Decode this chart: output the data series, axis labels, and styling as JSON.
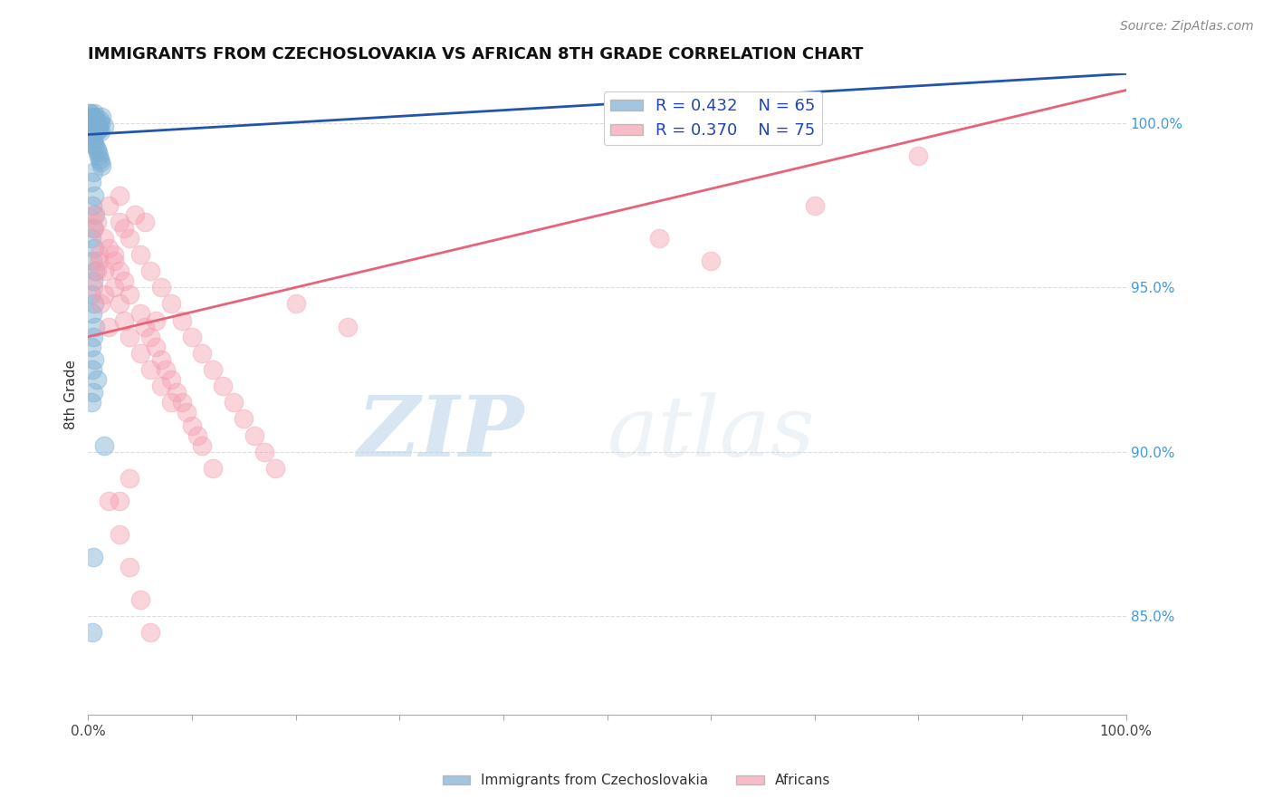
{
  "title": "IMMIGRANTS FROM CZECHOSLOVAKIA VS AFRICAN 8TH GRADE CORRELATION CHART",
  "source": "Source: ZipAtlas.com",
  "ylabel": "8th Grade",
  "ylabel_right_ticks": [
    85.0,
    90.0,
    95.0,
    100.0
  ],
  "xlim": [
    0.0,
    100.0
  ],
  "ylim": [
    82.0,
    101.5
  ],
  "legend1_label": "Immigrants from Czechoslovakia",
  "legend2_label": "Africans",
  "R1": 0.432,
  "N1": 65,
  "R2": 0.37,
  "N2": 75,
  "blue_color": "#7BAFD4",
  "pink_color": "#F4A0B0",
  "blue_line_color": "#2255AA",
  "pink_line_color": "#E8637A",
  "blue_line": [
    [
      0.0,
      99.65
    ],
    [
      100.0,
      101.5
    ]
  ],
  "pink_line": [
    [
      0.0,
      93.5
    ],
    [
      100.0,
      101.0
    ]
  ],
  "blue_dots": [
    [
      0.15,
      100.3
    ],
    [
      0.3,
      100.2
    ],
    [
      0.5,
      100.1
    ],
    [
      0.8,
      100.0
    ],
    [
      1.0,
      99.9
    ],
    [
      0.6,
      100.3
    ],
    [
      1.2,
      100.0
    ],
    [
      0.4,
      100.1
    ],
    [
      0.7,
      100.2
    ],
    [
      0.9,
      99.8
    ],
    [
      1.5,
      99.9
    ],
    [
      0.2,
      100.3
    ],
    [
      1.1,
      100.1
    ],
    [
      0.6,
      100.0
    ],
    [
      0.8,
      99.9
    ],
    [
      1.3,
      100.2
    ],
    [
      0.4,
      100.1
    ],
    [
      0.5,
      99.8
    ],
    [
      0.25,
      100.15
    ],
    [
      0.35,
      100.0
    ],
    [
      0.45,
      100.05
    ],
    [
      0.55,
      100.1
    ],
    [
      0.65,
      100.0
    ],
    [
      0.75,
      99.95
    ],
    [
      0.85,
      99.9
    ],
    [
      0.95,
      99.85
    ],
    [
      1.05,
      99.8
    ],
    [
      1.15,
      99.75
    ],
    [
      0.2,
      99.9
    ],
    [
      0.3,
      99.7
    ],
    [
      0.4,
      99.6
    ],
    [
      0.5,
      99.5
    ],
    [
      0.6,
      99.4
    ],
    [
      0.7,
      99.3
    ],
    [
      0.8,
      99.2
    ],
    [
      0.9,
      99.1
    ],
    [
      1.0,
      99.0
    ],
    [
      1.1,
      98.9
    ],
    [
      1.2,
      98.8
    ],
    [
      1.3,
      98.7
    ],
    [
      0.5,
      98.5
    ],
    [
      0.3,
      98.2
    ],
    [
      0.6,
      97.8
    ],
    [
      0.4,
      97.5
    ],
    [
      0.7,
      97.2
    ],
    [
      0.5,
      96.8
    ],
    [
      0.3,
      96.5
    ],
    [
      0.6,
      96.2
    ],
    [
      0.4,
      95.8
    ],
    [
      0.7,
      95.5
    ],
    [
      0.5,
      95.2
    ],
    [
      0.3,
      94.8
    ],
    [
      0.6,
      94.5
    ],
    [
      0.4,
      94.2
    ],
    [
      0.7,
      93.8
    ],
    [
      0.5,
      93.5
    ],
    [
      0.3,
      93.2
    ],
    [
      0.6,
      92.8
    ],
    [
      0.4,
      92.5
    ],
    [
      0.8,
      92.2
    ],
    [
      0.5,
      91.8
    ],
    [
      0.3,
      91.5
    ],
    [
      1.5,
      90.2
    ],
    [
      0.5,
      86.8
    ],
    [
      0.4,
      84.5
    ]
  ],
  "pink_dots": [
    [
      0.5,
      97.2
    ],
    [
      0.8,
      97.0
    ],
    [
      1.5,
      96.5
    ],
    [
      2.0,
      96.2
    ],
    [
      2.5,
      95.8
    ],
    [
      3.0,
      95.5
    ],
    [
      3.5,
      95.2
    ],
    [
      4.0,
      94.8
    ],
    [
      5.0,
      94.2
    ],
    [
      5.5,
      93.8
    ],
    [
      6.0,
      93.5
    ],
    [
      6.5,
      93.2
    ],
    [
      7.0,
      92.8
    ],
    [
      7.5,
      92.5
    ],
    [
      8.0,
      92.2
    ],
    [
      8.5,
      91.8
    ],
    [
      9.0,
      91.5
    ],
    [
      9.5,
      91.2
    ],
    [
      10.0,
      90.8
    ],
    [
      10.5,
      90.5
    ],
    [
      11.0,
      90.2
    ],
    [
      12.0,
      89.5
    ],
    [
      1.0,
      96.0
    ],
    [
      1.5,
      95.5
    ],
    [
      2.5,
      95.0
    ],
    [
      3.0,
      94.5
    ],
    [
      3.5,
      94.0
    ],
    [
      4.0,
      93.5
    ],
    [
      5.0,
      93.0
    ],
    [
      6.0,
      92.5
    ],
    [
      7.0,
      92.0
    ],
    [
      8.0,
      91.5
    ],
    [
      2.0,
      97.5
    ],
    [
      3.0,
      97.0
    ],
    [
      4.0,
      96.5
    ],
    [
      5.0,
      96.0
    ],
    [
      6.0,
      95.5
    ],
    [
      7.0,
      95.0
    ],
    [
      8.0,
      94.5
    ],
    [
      9.0,
      94.0
    ],
    [
      10.0,
      93.5
    ],
    [
      11.0,
      93.0
    ],
    [
      12.0,
      92.5
    ],
    [
      13.0,
      92.0
    ],
    [
      14.0,
      91.5
    ],
    [
      15.0,
      91.0
    ],
    [
      16.0,
      90.5
    ],
    [
      17.0,
      90.0
    ],
    [
      18.0,
      89.5
    ],
    [
      3.0,
      97.8
    ],
    [
      4.5,
      97.2
    ],
    [
      5.5,
      97.0
    ],
    [
      20.0,
      94.5
    ],
    [
      25.0,
      93.8
    ],
    [
      55.0,
      96.5
    ],
    [
      60.0,
      95.8
    ],
    [
      70.0,
      97.5
    ],
    [
      80.0,
      99.0
    ],
    [
      2.0,
      88.5
    ],
    [
      3.0,
      87.5
    ],
    [
      4.0,
      86.5
    ],
    [
      5.0,
      85.5
    ],
    [
      6.0,
      84.5
    ],
    [
      3.5,
      96.8
    ],
    [
      2.5,
      96.0
    ],
    [
      6.5,
      94.0
    ],
    [
      1.5,
      94.8
    ],
    [
      2.0,
      93.8
    ],
    [
      0.8,
      95.5
    ],
    [
      0.6,
      96.8
    ],
    [
      1.0,
      95.8
    ],
    [
      1.2,
      94.5
    ],
    [
      0.5,
      95.0
    ],
    [
      3.0,
      88.5
    ],
    [
      4.0,
      89.2
    ]
  ]
}
